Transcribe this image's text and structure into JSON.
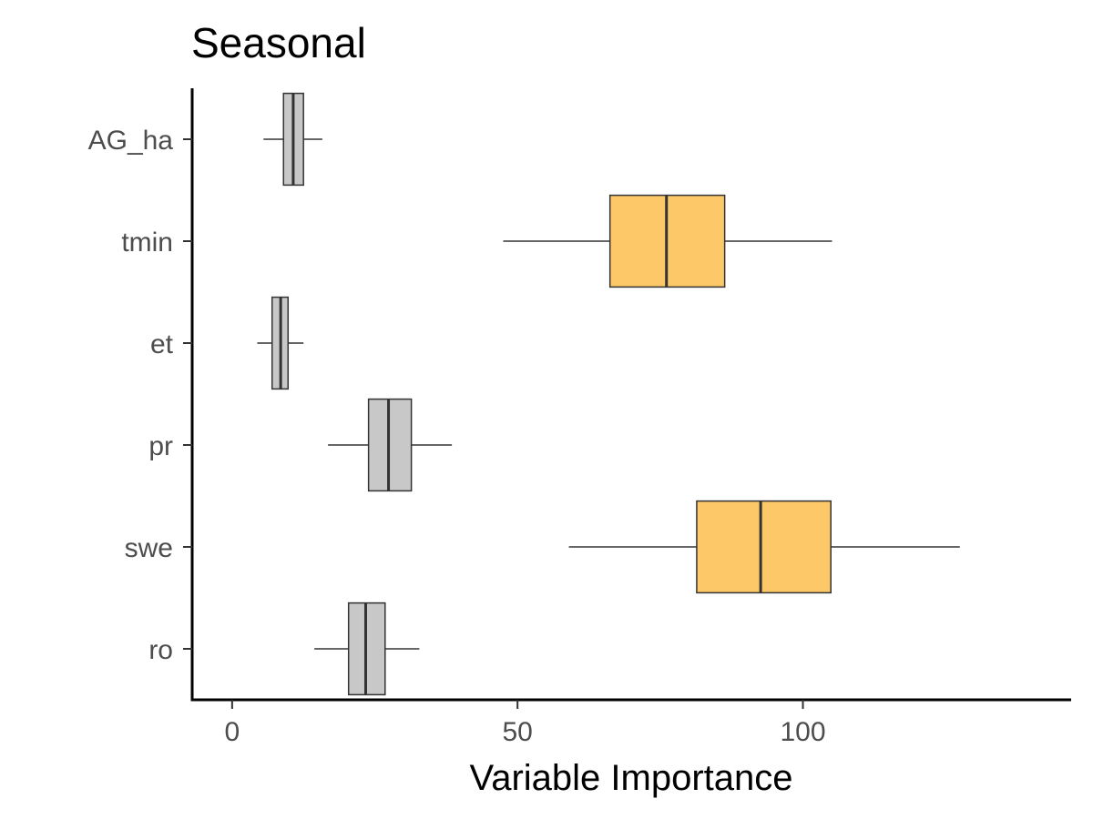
{
  "chart_data": {
    "type": "boxplot",
    "orientation": "horizontal",
    "title": "Seasonal",
    "xlabel": "Variable Importance",
    "ylabel": "",
    "xlim": [
      -7,
      147
    ],
    "xticks": [
      0,
      50,
      100
    ],
    "xtick_labels": [
      "0",
      "50",
      "100"
    ],
    "grid": false,
    "legend": "none",
    "categories": [
      "AG_ha",
      "tmin",
      "et",
      "pr",
      "swe",
      "ro"
    ],
    "boxes": [
      {
        "label": "AG_ha",
        "whisker_low": 5.5,
        "q1": 9,
        "median": 10.7,
        "q3": 12.5,
        "whisker_high": 15.8,
        "fill": "#c8c8c8"
      },
      {
        "label": "tmin",
        "whisker_low": 47.5,
        "q1": 66.2,
        "median": 76.1,
        "q3": 86.3,
        "whisker_high": 105.1,
        "fill": "#fdc968"
      },
      {
        "label": "et",
        "whisker_low": 4.4,
        "q1": 7,
        "median": 8.5,
        "q3": 9.8,
        "whisker_high": 12.5,
        "fill": "#c8c8c8"
      },
      {
        "label": "pr",
        "whisker_low": 16.8,
        "q1": 23.9,
        "median": 27.4,
        "q3": 31.4,
        "whisker_high": 38.5,
        "fill": "#c8c8c8"
      },
      {
        "label": "swe",
        "whisker_low": 59,
        "q1": 81.4,
        "median": 92.6,
        "q3": 104.9,
        "whisker_high": 127.5,
        "fill": "#fdc968"
      },
      {
        "label": "ro",
        "whisker_low": 14.4,
        "q1": 20.4,
        "median": 23.4,
        "q3": 26.8,
        "whisker_high": 32.8,
        "fill": "#c8c8c8"
      }
    ],
    "colors": {
      "highlight": "#fdc968",
      "default": "#c8c8c8",
      "outline": "#333333"
    }
  }
}
